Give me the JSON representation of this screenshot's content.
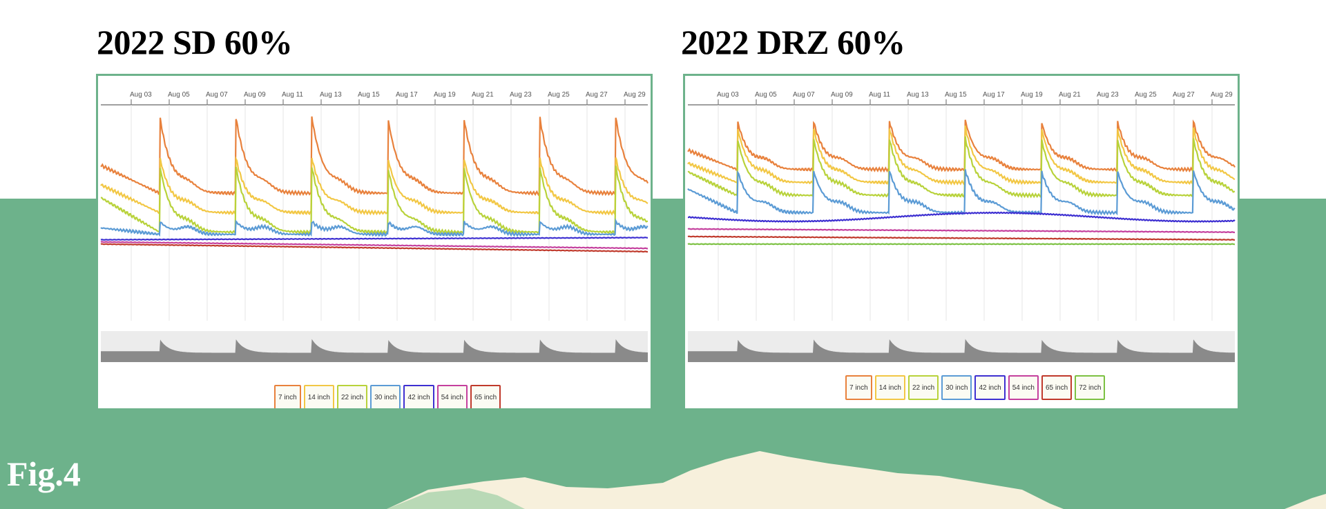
{
  "slide": {
    "fig_label": "Fig.4"
  },
  "chart_data": [
    {
      "type": "line",
      "title": "2022 SD 60%",
      "x_ticks": [
        "Aug 03",
        "Aug 05",
        "Aug 07",
        "Aug 09",
        "Aug 11",
        "Aug 13",
        "Aug 15",
        "Aug 17",
        "Aug 19",
        "Aug 21",
        "Aug 23",
        "Aug 25",
        "Aug 27",
        "Aug 29"
      ],
      "x_range_days": [
        1.4,
        30.2
      ],
      "peaks_days": [
        4.5,
        8.5,
        12.5,
        16.5,
        20.5,
        24.5,
        28.5
      ],
      "legend_position": "bottom",
      "series": [
        {
          "name": "7 inch",
          "color": "#e8813c",
          "base": 0.28,
          "peak": 0.05,
          "pre": 0.41
        },
        {
          "name": "14 inch",
          "color": "#f2c744",
          "base": 0.37,
          "peak": 0.24,
          "pre": 0.5
        },
        {
          "name": "22 inch",
          "color": "#b8d23a",
          "base": 0.43,
          "peak": 0.28,
          "pre": 0.59
        },
        {
          "name": "30 inch",
          "color": "#5b9bd5",
          "base": 0.57,
          "peak": 0.54,
          "pre": 0.6
        },
        {
          "name": "42 inch",
          "color": "#3d2fd1",
          "base": 0.625,
          "end": 0.615
        },
        {
          "name": "54 inch",
          "color": "#c43f9d",
          "base": 0.635,
          "end": 0.665
        },
        {
          "name": "65 inch",
          "color": "#c0392b",
          "base": 0.645,
          "end": 0.68
        }
      ],
      "overview": "precipitation-like gray area strip"
    },
    {
      "type": "line",
      "title": "2022 DRZ 60%",
      "x_ticks": [
        "Aug 03",
        "Aug 05",
        "Aug 07",
        "Aug 09",
        "Aug 11",
        "Aug 13",
        "Aug 15",
        "Aug 17",
        "Aug 19",
        "Aug 21",
        "Aug 23",
        "Aug 25",
        "Aug 27",
        "Aug 29"
      ],
      "x_range_days": [
        1.4,
        30.2
      ],
      "peaks_days": [
        4.0,
        8.0,
        12.0,
        16.0,
        20.0,
        24.0,
        28.0
      ],
      "legend_position": "bottom",
      "series": [
        {
          "name": "7 inch",
          "color": "#e8813c",
          "base": 0.21,
          "peak": 0.07,
          "pre": 0.3
        },
        {
          "name": "14 inch",
          "color": "#f2c744",
          "base": 0.27,
          "peak": 0.1,
          "pre": 0.36
        },
        {
          "name": "22 inch",
          "color": "#b8d23a",
          "base": 0.31,
          "peak": 0.15,
          "pre": 0.42
        },
        {
          "name": "30 inch",
          "color": "#5b9bd5",
          "base": 0.39,
          "peak": 0.3,
          "pre": 0.5
        },
        {
          "name": "42 inch",
          "color": "#3d2fd1",
          "base": 0.52,
          "wave": 0.02
        },
        {
          "name": "54 inch",
          "color": "#c43f9d",
          "base": 0.575,
          "end": 0.59
        },
        {
          "name": "65 inch",
          "color": "#c0392b",
          "base": 0.61,
          "end": 0.625
        },
        {
          "name": "72 inch",
          "color": "#7cc142",
          "base": 0.645,
          "end": 0.645
        }
      ],
      "overview": "precipitation-like gray area strip"
    }
  ]
}
